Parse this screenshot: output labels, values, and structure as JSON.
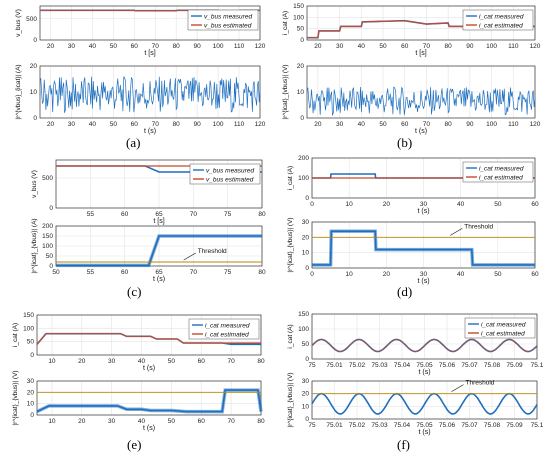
{
  "colors": {
    "measured": "#1f6fbf",
    "estimated": "#c8492b",
    "signal": "#1f6fbf",
    "threshold": "#b8860b"
  },
  "panel_labels": [
    "(a)",
    "(b)",
    "(c)",
    "(d)",
    "(e)",
    "(f)"
  ],
  "chart_data": [
    {
      "id": "a_top",
      "type": "line",
      "ylabel": "v_bus (V)",
      "xlabel": "t [s]",
      "xlim": [
        15,
        120
      ],
      "ylim": [
        0,
        800
      ],
      "xticks": [
        20,
        30,
        40,
        50,
        60,
        70,
        80,
        90,
        100,
        110,
        120
      ],
      "yticks": [
        0,
        500
      ],
      "series": [
        {
          "name": "v_bus measured",
          "x": [
            15,
            60,
            60.5,
            80,
            80.5,
            100,
            100.5,
            110,
            110.5,
            120
          ],
          "y": [
            700,
            700,
            690,
            690,
            700,
            700,
            690,
            690,
            700,
            700
          ]
        },
        {
          "name": "v_bus estimated",
          "x": [
            15,
            60,
            60.5,
            80,
            80.5,
            100,
            100.5,
            110,
            110.5,
            120
          ],
          "y": [
            700,
            700,
            690,
            690,
            700,
            700,
            690,
            690,
            700,
            700
          ]
        }
      ]
    },
    {
      "id": "a_bot",
      "type": "line",
      "ylabel": "|r^{vbus}_{icat}| (A)",
      "xlabel": "t (s)",
      "xlim": [
        15,
        120
      ],
      "ylim": [
        0,
        20
      ],
      "xticks": [
        20,
        30,
        40,
        50,
        60,
        70,
        80,
        90,
        100,
        110,
        120
      ],
      "yticks": [
        0,
        10,
        20
      ],
      "series": [
        {
          "name": "residual",
          "pattern": "noise",
          "min": 2,
          "max": 16
        }
      ]
    },
    {
      "id": "b_top",
      "type": "line",
      "ylabel": "i_cat (A)",
      "xlabel": "t [s]",
      "xlim": [
        15,
        120
      ],
      "ylim": [
        0,
        150
      ],
      "xticks": [
        20,
        30,
        40,
        50,
        60,
        70,
        80,
        90,
        100,
        110,
        120
      ],
      "yticks": [
        0,
        50,
        100,
        150
      ],
      "series": [
        {
          "name": "i_cat measured",
          "x": [
            15,
            20,
            20.5,
            30,
            30.5,
            40,
            40.5,
            60,
            70,
            80,
            80.5,
            100,
            100.5,
            110,
            110.5,
            120
          ],
          "y": [
            10,
            10,
            40,
            40,
            60,
            60,
            80,
            85,
            70,
            75,
            60,
            60,
            50,
            50,
            60,
            60
          ]
        },
        {
          "name": "i_cat estimated",
          "x": [
            15,
            20,
            20.5,
            30,
            30.5,
            40,
            40.5,
            60,
            70,
            80,
            80.5,
            100,
            100.5,
            110,
            110.5,
            120
          ],
          "y": [
            10,
            10,
            40,
            40,
            60,
            60,
            80,
            85,
            70,
            75,
            60,
            60,
            50,
            50,
            60,
            60
          ]
        }
      ]
    },
    {
      "id": "b_bot",
      "type": "line",
      "ylabel": "|r^{icat}_{vbus}| (V)",
      "xlabel": "t (s)",
      "xlim": [
        15,
        120
      ],
      "ylim": [
        0,
        20
      ],
      "xticks": [
        20,
        30,
        40,
        50,
        60,
        70,
        80,
        90,
        100,
        110,
        120
      ],
      "yticks": [
        0,
        10,
        20
      ],
      "series": [
        {
          "name": "residual",
          "pattern": "noise",
          "min": 1,
          "max": 12
        }
      ]
    },
    {
      "id": "c_top",
      "type": "line",
      "ylabel": "v_bus (V)",
      "xlabel": "t [s]",
      "xlim": [
        50,
        80
      ],
      "ylim": [
        0,
        800
      ],
      "xticks": [
        55,
        60,
        65,
        70,
        75,
        80
      ],
      "yticks": [
        0,
        500
      ],
      "series": [
        {
          "name": "v_bus measured",
          "x": [
            50,
            63,
            65,
            80
          ],
          "y": [
            700,
            700,
            600,
            600
          ]
        },
        {
          "name": "v_bus estimated",
          "x": [
            50,
            80
          ],
          "y": [
            700,
            700
          ]
        }
      ]
    },
    {
      "id": "c_bot",
      "type": "line",
      "ylabel": "|r^{icat}_{vbus}| (A)",
      "xlabel": "t (s)",
      "xlim": [
        50,
        80
      ],
      "ylim": [
        0,
        200
      ],
      "xticks": [
        50,
        55,
        60,
        65,
        70,
        75,
        80
      ],
      "yticks": [
        0,
        50,
        100,
        150,
        200
      ],
      "series": [
        {
          "name": "residual",
          "x": [
            50,
            63.5,
            65,
            80
          ],
          "y": [
            3,
            3,
            150,
            150
          ]
        },
        {
          "name": "threshold",
          "x": [
            50,
            80
          ],
          "y": [
            20,
            20
          ]
        }
      ],
      "annotations": [
        "Threshold"
      ]
    },
    {
      "id": "d_top",
      "type": "line",
      "ylabel": "i_cat (A)",
      "xlabel": "t (s)",
      "xlim": [
        0,
        60
      ],
      "ylim": [
        0,
        200
      ],
      "xticks": [
        0,
        10,
        20,
        30,
        40,
        50,
        60
      ],
      "yticks": [
        0,
        100,
        200
      ],
      "series": [
        {
          "name": "i_cat measured",
          "x": [
            0,
            5,
            5.1,
            17,
            17.1,
            43,
            43.1,
            60
          ],
          "y": [
            100,
            100,
            120,
            120,
            100,
            100,
            100,
            100
          ]
        },
        {
          "name": "i_cat estimated",
          "x": [
            0,
            60
          ],
          "y": [
            100,
            100
          ]
        }
      ]
    },
    {
      "id": "d_bot",
      "type": "line",
      "ylabel": "|r^{icat}_{vbus}| (V)",
      "xlabel": "t (s)",
      "xlim": [
        0,
        60
      ],
      "ylim": [
        0,
        30
      ],
      "xticks": [
        0,
        10,
        20,
        30,
        40,
        50,
        60
      ],
      "yticks": [
        0,
        10,
        20,
        30
      ],
      "series": [
        {
          "name": "residual",
          "x": [
            0,
            5,
            5.2,
            17,
            17.2,
            43,
            43.2,
            60
          ],
          "y": [
            2,
            2,
            24,
            24,
            12,
            12,
            2,
            2
          ]
        },
        {
          "name": "threshold",
          "x": [
            0,
            60
          ],
          "y": [
            20,
            20
          ]
        }
      ],
      "annotations": [
        "Threshold"
      ]
    },
    {
      "id": "e_top",
      "type": "line",
      "ylabel": "i_cat (A)",
      "xlabel": "t (s)",
      "xlim": [
        5,
        80
      ],
      "ylim": [
        0,
        150
      ],
      "xticks": [
        10,
        20,
        30,
        40,
        50,
        60,
        70,
        80
      ],
      "yticks": [
        0,
        50,
        100,
        150
      ],
      "series": [
        {
          "name": "i_cat measured",
          "x": [
            5,
            8,
            33,
            35,
            43,
            45,
            52,
            54,
            67,
            70,
            80
          ],
          "y": [
            40,
            80,
            80,
            70,
            70,
            60,
            60,
            45,
            45,
            40,
            40
          ]
        },
        {
          "name": "i_cat estimated",
          "x": [
            5,
            8,
            33,
            35,
            43,
            45,
            52,
            54,
            80
          ],
          "y": [
            40,
            80,
            80,
            70,
            70,
            60,
            60,
            45,
            45
          ]
        }
      ]
    },
    {
      "id": "e_bot",
      "type": "line",
      "ylabel": "|r^{icat}_{vbus}| (V)",
      "xlabel": "t (s)",
      "xlim": [
        5,
        80
      ],
      "ylim": [
        0,
        30
      ],
      "xticks": [
        10,
        20,
        30,
        40,
        50,
        60,
        70,
        80
      ],
      "yticks": [
        0,
        10,
        20,
        30
      ],
      "series": [
        {
          "name": "residual",
          "x": [
            5,
            9,
            32,
            35,
            40,
            43,
            50,
            55,
            60,
            67,
            68,
            79,
            80
          ],
          "y": [
            3,
            8,
            8,
            5,
            5,
            4,
            4,
            3,
            3,
            3,
            22,
            22,
            3
          ]
        },
        {
          "name": "threshold",
          "x": [
            5,
            80
          ],
          "y": [
            20,
            20
          ]
        }
      ]
    },
    {
      "id": "f_top",
      "type": "line",
      "ylabel": "i_cat (A)",
      "xlabel": "t (s)",
      "xlim": [
        75,
        75.1
      ],
      "ylim": [
        0,
        150
      ],
      "xticks": [
        75,
        75.01,
        75.02,
        75.03,
        75.04,
        75.05,
        75.06,
        75.07,
        75.08,
        75.09,
        75.1
      ],
      "yticks": [
        0,
        50,
        100,
        150
      ],
      "series": [
        {
          "name": "i_cat measured",
          "pattern": "sine",
          "period": 0.0167,
          "mean": 45,
          "amp": 20
        },
        {
          "name": "i_cat estimated",
          "pattern": "sine",
          "period": 0.0167,
          "mean": 45,
          "amp": 20
        }
      ]
    },
    {
      "id": "f_bot",
      "type": "line",
      "ylabel": "|r^{icat}_{vbus}| (V)",
      "xlabel": "t (s)",
      "xlim": [
        75,
        75.1
      ],
      "ylim": [
        0,
        30
      ],
      "xticks": [
        75,
        75.01,
        75.02,
        75.03,
        75.04,
        75.05,
        75.06,
        75.07,
        75.08,
        75.09,
        75.1
      ],
      "yticks": [
        0,
        10,
        20,
        30
      ],
      "series": [
        {
          "name": "residual",
          "pattern": "sine",
          "period": 0.0167,
          "mean": 12,
          "amp": 8
        },
        {
          "name": "threshold",
          "x": [
            75,
            75.1
          ],
          "y": [
            20,
            20
          ]
        }
      ],
      "annotations": [
        "Threshold"
      ]
    }
  ]
}
